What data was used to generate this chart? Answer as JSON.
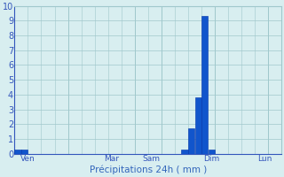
{
  "bar_values": [
    0.3,
    0.25,
    0,
    0,
    0,
    0,
    0,
    0,
    0,
    0,
    0,
    0,
    0,
    0,
    0,
    0,
    0,
    0,
    0,
    0,
    0,
    0,
    0,
    0,
    0,
    0.3,
    1.7,
    3.8,
    9.3,
    0.3,
    0,
    0,
    0,
    0,
    0,
    0,
    0,
    0,
    0,
    0
  ],
  "n_bars": 40,
  "bar_color": "#1155cc",
  "bar_edge_color": "#0033aa",
  "background_color": "#d8eef0",
  "grid_color": "#a0c8cc",
  "xlabel": "Précipitations 24h ( mm )",
  "xlabel_color": "#3366bb",
  "tick_color": "#3355bb",
  "axis_color": "#3355bb",
  "ylim": [
    0,
    10
  ],
  "yticks": [
    0,
    1,
    2,
    3,
    4,
    5,
    6,
    7,
    8,
    9,
    10
  ],
  "xtick_positions": [
    1.5,
    14,
    20,
    29,
    37
  ],
  "xtick_labels": [
    "Ven",
    "Mar",
    "Sam",
    "Dim",
    "Lun"
  ],
  "day_line_positions": [
    0,
    8,
    18,
    22,
    30,
    38
  ],
  "figsize": [
    3.2,
    2.0
  ],
  "dpi": 100
}
